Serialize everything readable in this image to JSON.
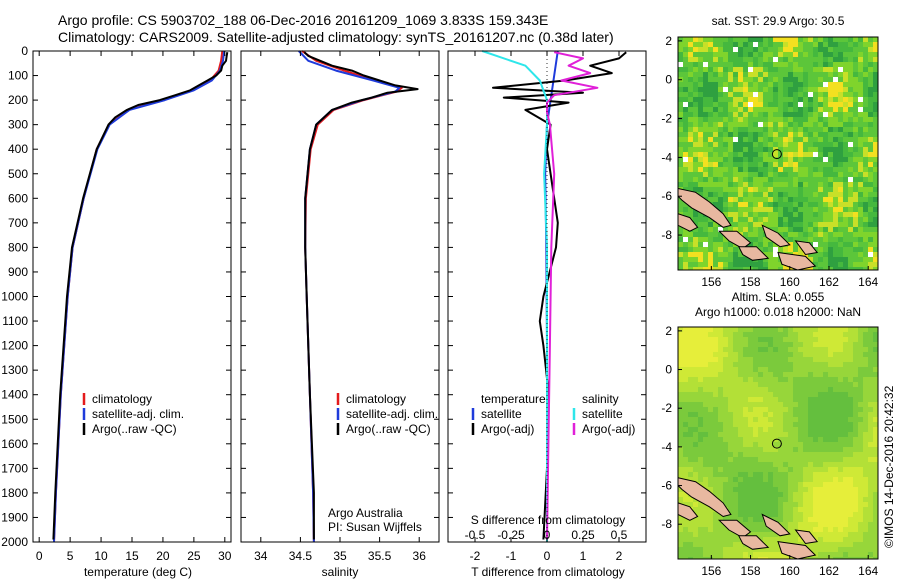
{
  "header": {
    "line1": "Argo profile: CS 5903702_188 06-Dec-2016 20161209_1069 3.833S 159.343E",
    "line2": "Climatology: CARS2009. Satellite-adjusted climatology: synTS_20161207.nc (0.38d later)"
  },
  "colors": {
    "climatology": "#e41a1c",
    "satellite": "#1f3bdb",
    "argo": "#000000",
    "s_satellite": "#2ee6ea",
    "s_argo": "#e020d8",
    "land": "#e8b8a0"
  },
  "chart_data": [
    {
      "type": "line",
      "id": "temperature",
      "xlabel": "temperature (deg C)",
      "xlim": [
        -1,
        31
      ],
      "ylim": [
        2000,
        0
      ],
      "xticks": [
        "0",
        "5",
        "10",
        "15",
        "20",
        "25",
        "30"
      ],
      "yticks": [
        "0",
        "100",
        "200",
        "300",
        "400",
        "500",
        "600",
        "700",
        "800",
        "900",
        "1000",
        "1100",
        "1200",
        "1300",
        "1400",
        "1500",
        "1600",
        "1700",
        "1800",
        "1900",
        "2000"
      ],
      "legend": [
        "climatology",
        "satellite-adj. clim.",
        "Argo(..raw -QC)"
      ],
      "series": [
        {
          "name": "climatology",
          "depth": [
            0,
            40,
            80,
            120,
            160,
            200,
            240,
            300,
            400,
            600,
            800,
            1000,
            1400,
            1800,
            2000
          ],
          "values": [
            29.6,
            29.4,
            29.0,
            27.6,
            24.8,
            20.0,
            14.4,
            11.3,
            9.3,
            7.2,
            5.4,
            4.6,
            3.5,
            2.7,
            2.4
          ]
        },
        {
          "name": "satellite-adj. clim.",
          "depth": [
            0,
            40,
            80,
            120,
            160,
            200,
            240,
            300,
            400,
            600,
            800,
            1000,
            1400,
            1800,
            2000
          ],
          "values": [
            29.9,
            29.7,
            29.2,
            27.9,
            25.0,
            20.3,
            14.6,
            11.4,
            9.4,
            7.2,
            5.4,
            4.6,
            3.5,
            2.7,
            2.4
          ]
        },
        {
          "name": "Argo(..raw -QC)",
          "depth": [
            5,
            20,
            40,
            60,
            80,
            100,
            120,
            140,
            160,
            180,
            200,
            220,
            240,
            270,
            300,
            400,
            600,
            800,
            1000,
            1400,
            1800,
            1990
          ],
          "values": [
            30.4,
            30.3,
            30.2,
            29.6,
            29.4,
            28.6,
            27.2,
            25.8,
            24.4,
            22.0,
            19.5,
            16.0,
            14.2,
            12.3,
            11.2,
            9.3,
            7.1,
            5.3,
            4.5,
            3.4,
            2.6,
            2.3
          ]
        }
      ]
    },
    {
      "type": "line",
      "id": "salinity",
      "xlabel": "salinity",
      "xlim": [
        33.75,
        36.25
      ],
      "ylim": [
        2000,
        0
      ],
      "xticks": [
        "34",
        "34.5",
        "35",
        "35.5",
        "36"
      ],
      "legend": [
        "climatology",
        "satellite-adj. clim.",
        "Argo(..raw -QC)"
      ],
      "annotation": [
        "Argo Australia",
        "PI: Susan Wijffels"
      ],
      "series": [
        {
          "name": "climatology",
          "depth": [
            0,
            40,
            80,
            120,
            150,
            165,
            200,
            240,
            300,
            400,
            600,
            800,
            1000,
            1400,
            1800,
            2000
          ],
          "values": [
            34.52,
            34.7,
            35.05,
            35.45,
            35.78,
            35.72,
            35.3,
            34.92,
            34.72,
            34.63,
            34.57,
            34.56,
            34.58,
            34.62,
            34.66,
            34.67
          ]
        },
        {
          "name": "satellite-adj. clim.",
          "depth": [
            0,
            40,
            80,
            120,
            150,
            165,
            200,
            240,
            300,
            400,
            600,
            800,
            1000,
            1400,
            1800,
            2000
          ],
          "values": [
            34.48,
            34.6,
            34.95,
            35.42,
            35.75,
            35.7,
            35.28,
            34.9,
            34.7,
            34.62,
            34.56,
            34.56,
            34.58,
            34.62,
            34.66,
            34.67
          ]
        },
        {
          "name": "Argo(..raw -QC)",
          "depth": [
            5,
            20,
            40,
            60,
            80,
            100,
            120,
            140,
            155,
            170,
            190,
            210,
            240,
            300,
            400,
            600,
            800,
            1000,
            1400,
            1800,
            1990
          ],
          "values": [
            34.55,
            34.6,
            34.75,
            34.9,
            35.15,
            35.3,
            35.5,
            35.7,
            35.98,
            35.6,
            35.4,
            35.15,
            34.9,
            34.7,
            34.62,
            34.56,
            34.56,
            34.58,
            34.62,
            34.67,
            34.67
          ]
        }
      ]
    },
    {
      "type": "line",
      "id": "difference",
      "xlabel": "T difference from climatology",
      "x2label": "S difference from climatology",
      "xlim": [
        -2.75,
        2.75
      ],
      "ylim": [
        2000,
        0
      ],
      "xticks": [
        "-2",
        "-1",
        "0",
        "1",
        "2"
      ],
      "x2ticks": [
        "-0.5",
        "-0.25",
        "0",
        "0.25",
        "0.5"
      ],
      "legend": [
        "temperature",
        "satellite",
        "Argo(-adj)",
        "salinity",
        "satellite",
        "Argo(-adj)"
      ],
      "series": [
        {
          "name": "satellite",
          "variable": "temperature",
          "depth": [
            0,
            100,
            200,
            300,
            500,
            800,
            1200,
            1600,
            2000
          ],
          "values": [
            0.3,
            0.2,
            0.1,
            0.0,
            -0.05,
            -0.02,
            0.0,
            0.0,
            0.0
          ]
        },
        {
          "name": "Argo(-adj)",
          "variable": "temperature",
          "depth": [
            5,
            30,
            60,
            90,
            120,
            150,
            170,
            190,
            210,
            240,
            300,
            400,
            500,
            600,
            700,
            800,
            1000,
            1100,
            1200,
            1400,
            1700,
            1990
          ],
          "values": [
            2.2,
            2.0,
            1.2,
            1.8,
            0.5,
            -1.5,
            1.0,
            -1.2,
            0.6,
            -0.6,
            0.1,
            0.0,
            0.1,
            0.2,
            0.3,
            0.25,
            -0.1,
            -0.2,
            -0.1,
            0.05,
            0.0,
            -0.1
          ]
        },
        {
          "name": "satellite",
          "variable": "salinity",
          "depth": [
            0,
            60,
            120,
            200,
            300,
            500,
            800,
            1200,
            1600,
            2000
          ],
          "values": [
            -0.45,
            -0.15,
            -0.05,
            0.0,
            0.0,
            -0.02,
            0.0,
            0.0,
            0.0,
            0.0
          ]
        },
        {
          "name": "Argo(-adj)",
          "variable": "salinity",
          "depth": [
            5,
            30,
            60,
            90,
            120,
            150,
            180,
            210,
            250,
            300,
            500,
            800,
            1200,
            1600,
            1990
          ],
          "values": [
            0.05,
            0.25,
            0.15,
            0.3,
            0.1,
            0.35,
            0.05,
            0.0,
            0.0,
            0.02,
            0.05,
            0.03,
            0.02,
            0.01,
            0.0
          ]
        }
      ]
    },
    {
      "type": "heatmap",
      "id": "sst_map",
      "title": "sat. SST: 29.9  Argo: 30.5",
      "xlim": [
        154.3,
        164.5
      ],
      "ylim": [
        -9.8,
        2.2
      ],
      "xticks": [
        "156",
        "158",
        "160",
        "162",
        "164"
      ],
      "yticks": [
        "2",
        "0",
        "-2",
        "-4",
        "-6",
        "-8"
      ],
      "marker": {
        "lon": 159.343,
        "lat": -3.833
      }
    },
    {
      "type": "heatmap",
      "id": "sla_map",
      "title": "Altim. SLA: 0.055",
      "subtitle": "Argo h1000: 0.018 h2000: NaN",
      "xlim": [
        154.3,
        164.5
      ],
      "ylim": [
        -9.8,
        2.2
      ],
      "xticks": [
        "156",
        "158",
        "160",
        "162",
        "164"
      ],
      "yticks": [
        "2",
        "0",
        "-2",
        "-4",
        "-6",
        "-8"
      ],
      "marker": {
        "lon": 159.343,
        "lat": -3.833
      }
    }
  ],
  "credit": "©IMOS 14-Dec-2016 20:42:32"
}
